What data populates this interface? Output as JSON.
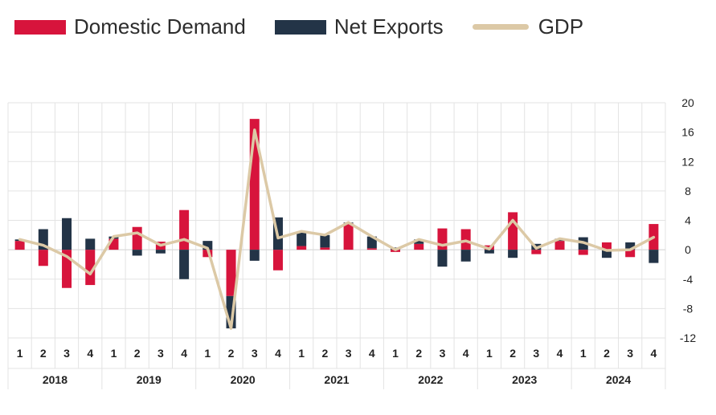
{
  "colors": {
    "domestic": "#d7143c",
    "net_exports": "#233447",
    "gdp": "#dcc9a6",
    "grid": "#e3e3e3"
  },
  "chart_data": {
    "type": "bar",
    "legend_position": "top-left",
    "grid": true,
    "title": "",
    "xlabel": "",
    "ylabel": "",
    "ylim": [
      -12,
      20
    ],
    "yticks": [
      20,
      16,
      12,
      8,
      4,
      0,
      -4,
      -8,
      -12
    ],
    "quarters": [
      "1",
      "2",
      "3",
      "4",
      "1",
      "2",
      "3",
      "4",
      "1",
      "2",
      "3",
      "4",
      "1",
      "2",
      "3",
      "4",
      "1",
      "2",
      "3",
      "4",
      "1",
      "2",
      "3",
      "4",
      "1",
      "2",
      "3",
      "4"
    ],
    "years": [
      "2018",
      "2019",
      "2020",
      "2021",
      "2022",
      "2023",
      "2024"
    ],
    "series": [
      {
        "name": "Domestic Demand",
        "kind": "stacked-bar",
        "values": [
          1.2,
          -2.2,
          -5.2,
          -4.8,
          1.5,
          3.1,
          1.1,
          5.4,
          -1.0,
          -6.3,
          17.8,
          -2.8,
          0.5,
          0.3,
          3.6,
          0.2,
          -0.3,
          0.8,
          2.9,
          2.8,
          0.6,
          5.1,
          -0.6,
          1.2,
          -0.7,
          1.0,
          -1.0,
          3.5
        ]
      },
      {
        "name": "Net Exports",
        "kind": "stacked-bar",
        "values": [
          0.2,
          2.8,
          4.3,
          1.5,
          0.3,
          -0.8,
          -0.5,
          -4.0,
          1.2,
          -4.4,
          -1.5,
          4.4,
          2.0,
          1.7,
          0.1,
          1.6,
          0.3,
          0.6,
          -2.3,
          -1.6,
          -0.5,
          -1.1,
          0.8,
          0.3,
          1.7,
          -1.1,
          1.0,
          -1.8
        ]
      },
      {
        "name": "GDP",
        "kind": "line",
        "values": [
          1.4,
          0.6,
          -0.9,
          -3.3,
          1.8,
          2.3,
          0.6,
          1.4,
          0.2,
          -10.7,
          16.3,
          1.6,
          2.5,
          2.0,
          3.7,
          1.8,
          0.0,
          1.4,
          0.6,
          1.2,
          0.1,
          4.0,
          0.2,
          1.5,
          1.0,
          -0.1,
          0.0,
          1.7
        ]
      }
    ]
  }
}
